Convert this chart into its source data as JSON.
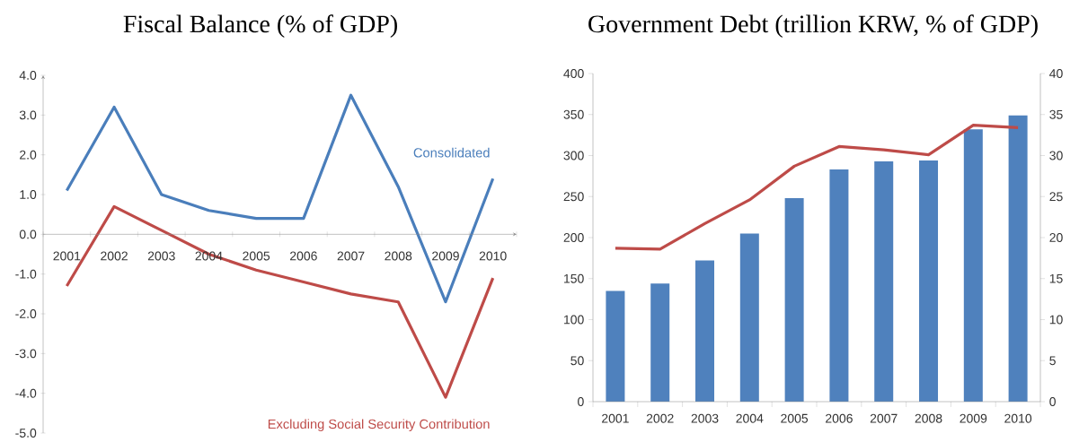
{
  "chart_data": [
    {
      "type": "line",
      "title": "Fiscal Balance (% of GDP)",
      "categories": [
        "2001",
        "2002",
        "2003",
        "2004",
        "2005",
        "2006",
        "2007",
        "2008",
        "2009",
        "2010"
      ],
      "series": [
        {
          "name": "Consolidated",
          "color": "#4a7ebb",
          "values": [
            1.1,
            3.2,
            1.0,
            0.6,
            0.4,
            0.4,
            3.5,
            1.2,
            -1.7,
            1.4
          ]
        },
        {
          "name": "Excluding Social Security Contribution",
          "color": "#be4b48",
          "values": [
            -1.3,
            0.7,
            0.1,
            -0.5,
            -0.9,
            -1.2,
            -1.5,
            -1.7,
            -4.1,
            -1.1
          ]
        }
      ],
      "ylim": [
        -5,
        4
      ],
      "yticks": [
        {
          "value": 4,
          "label": "4.0"
        },
        {
          "value": 3,
          "label": "3.0"
        },
        {
          "value": 2,
          "label": "2.0"
        },
        {
          "value": 1,
          "label": "1.0"
        },
        {
          "value": 0,
          "label": "0.0"
        },
        {
          "value": -1,
          "label": "-1.0"
        },
        {
          "value": -2,
          "label": "-2.0"
        },
        {
          "value": -3,
          "label": "-3.0"
        },
        {
          "value": -4,
          "label": "-4.0"
        },
        {
          "value": -5,
          "label": "-5.0"
        }
      ]
    },
    {
      "type": "bar",
      "title": "Government Debt (trillion KRW, % of GDP)",
      "categories": [
        "2001",
        "2002",
        "2003",
        "2004",
        "2005",
        "2006",
        "2007",
        "2008",
        "2009",
        "2010"
      ],
      "series": [
        {
          "color": "#4f81bd",
          "values": [
            135,
            144,
            172,
            205,
            248,
            283,
            293,
            294,
            332,
            349
          ]
        },
        {
          "type": "line",
          "axis": "y2",
          "color": "#be4b48",
          "values": [
            18.7,
            18.6,
            21.7,
            24.6,
            28.7,
            31.1,
            30.7,
            30.1,
            33.7,
            33.4
          ]
        }
      ],
      "ylim": [
        0,
        400
      ],
      "yticks": [
        0,
        50,
        100,
        150,
        200,
        250,
        300,
        350,
        400
      ],
      "y2lim": [
        0,
        40
      ],
      "y2ticks": [
        0,
        5,
        10,
        15,
        20,
        25,
        30,
        35,
        40
      ]
    }
  ]
}
